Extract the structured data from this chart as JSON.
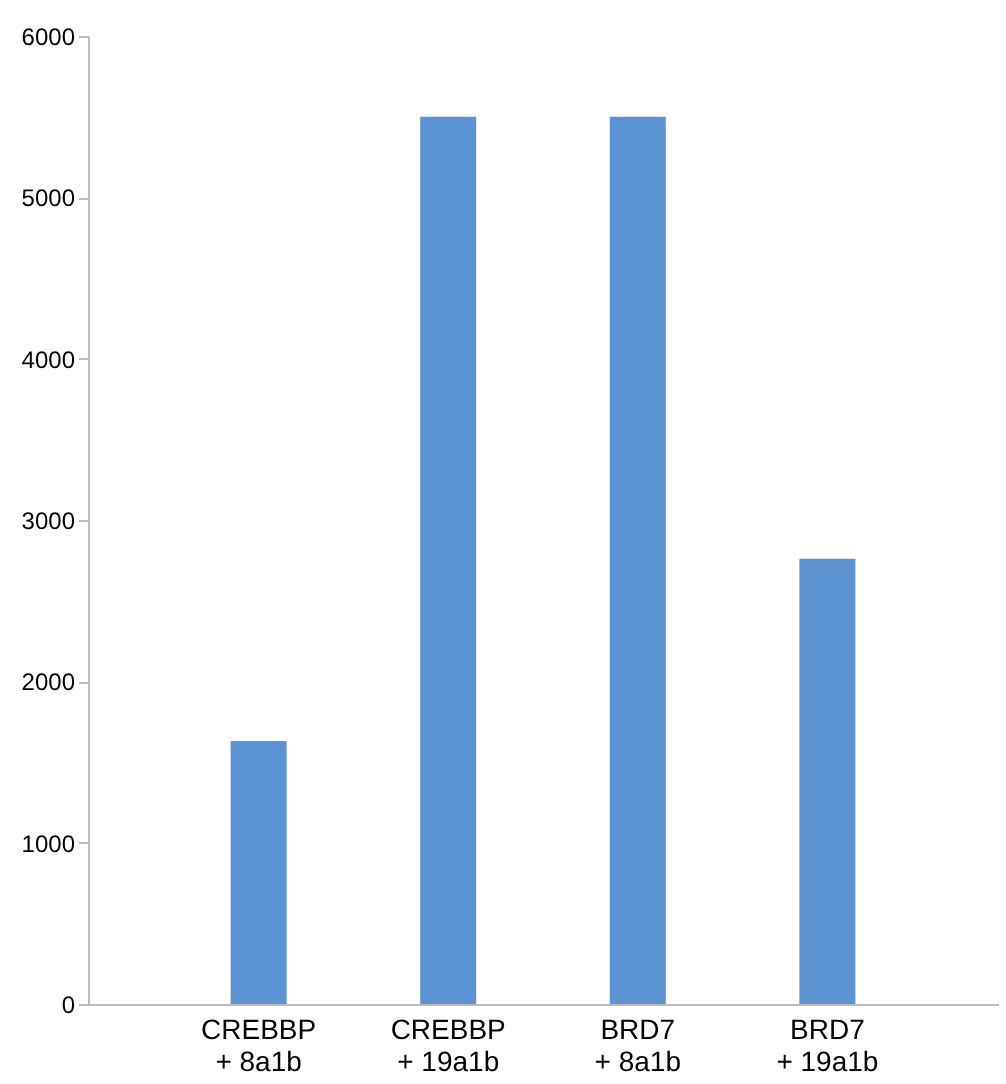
{
  "chart_data": {
    "type": "bar",
    "categories": [
      "CREBBP\n+ 8a1b",
      "CREBBP\n+ 19a1b",
      "BRD7\n+ 8a1b",
      "BRD7\n+ 19a1b"
    ],
    "values": [
      1630,
      5500,
      5500,
      2760
    ],
    "color": "#5b93d3",
    "ylim": [
      0,
      6000
    ],
    "yticks": [
      0,
      1000,
      2000,
      3000,
      4000,
      5000,
      6000
    ],
    "grid": false
  }
}
